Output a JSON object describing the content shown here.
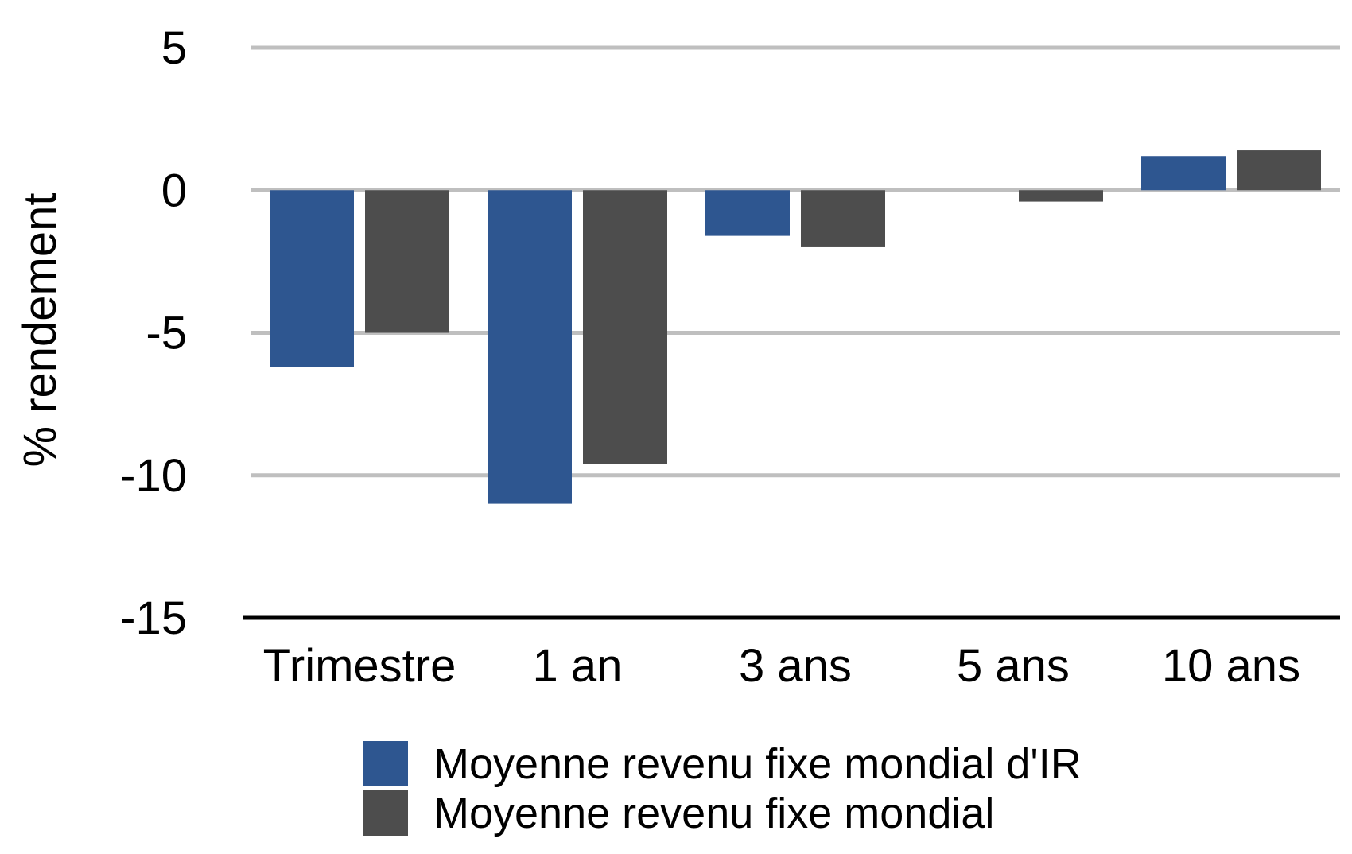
{
  "chart_data": {
    "type": "bar",
    "categories": [
      "Trimestre",
      "1 an",
      "3 ans",
      "5 ans",
      "10 ans"
    ],
    "series": [
      {
        "name": "Moyenne revenu fixe mondial d'IR",
        "color": "#2e5690",
        "values": [
          -6.2,
          -11.0,
          -1.6,
          null,
          1.2
        ]
      },
      {
        "name": "Moyenne revenu fixe mondial",
        "color": "#4d4d4d",
        "values": [
          -5.0,
          -9.6,
          -2.0,
          -0.4,
          1.4
        ]
      }
    ],
    "ylabel": "% rendement",
    "ylim": [
      -15,
      5
    ],
    "yticks": [
      "5",
      "0",
      "-5",
      "-10",
      "-15"
    ],
    "grid": true,
    "grid_color": "#bfbfbf",
    "legend_position": "bottom"
  }
}
